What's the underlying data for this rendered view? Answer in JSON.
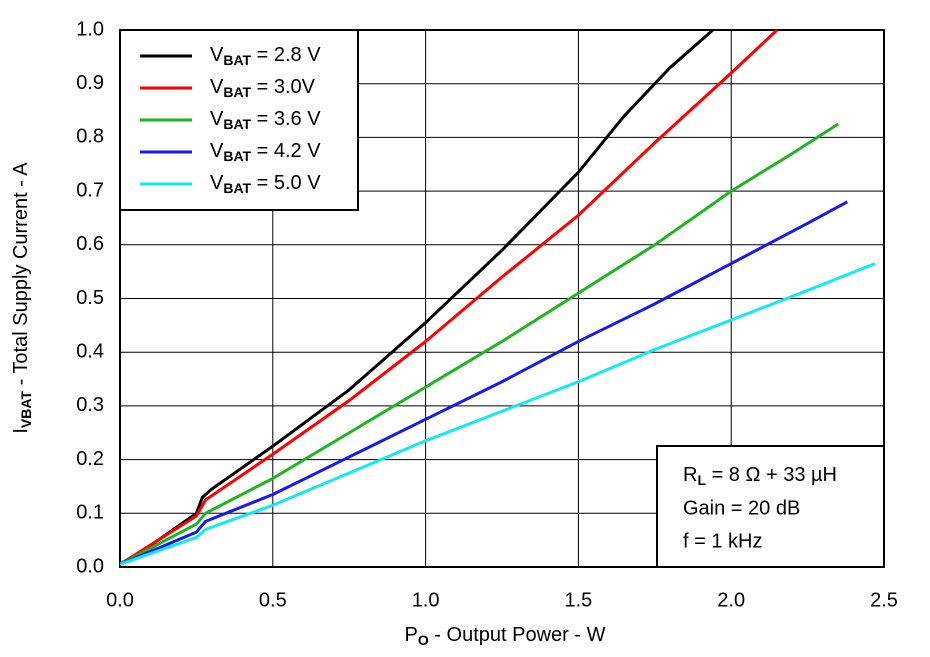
{
  "chart_data": {
    "type": "line",
    "xlabel": "PO - Output Power - W",
    "ylabel": "IVBAT - Total Supply Current - A",
    "xlim": [
      0,
      2.5
    ],
    "ylim": [
      0,
      1
    ],
    "xticks": [
      {
        "value": 0,
        "label": "0.0"
      },
      0.5,
      {
        "value": 1,
        "label": "1.0"
      },
      1.5,
      {
        "value": 2,
        "label": "2.0"
      },
      2.5
    ],
    "yticks": [
      {
        "value": 0,
        "label": "0.0"
      },
      0.1,
      0.2,
      0.3,
      0.4,
      0.5,
      0.6,
      0.7,
      0.8,
      0.9,
      {
        "value": 1,
        "label": "1.0"
      }
    ],
    "grid": true,
    "legend": "upper left",
    "annotations": [
      "RL = 8 Ω + 33 µH",
      "Gain = 20 dB",
      "f = 1 kHz"
    ],
    "series": [
      {
        "name": "VBAT = 2.8 V",
        "color": "#000000",
        "x": [
          0,
          0.1,
          0.25,
          0.27,
          0.3,
          0.5,
          0.75,
          1.0,
          1.25,
          1.5,
          1.65,
          1.8,
          1.94
        ],
        "values": [
          0.005,
          0.04,
          0.1,
          0.13,
          0.145,
          0.225,
          0.33,
          0.455,
          0.59,
          0.735,
          0.84,
          0.93,
          1.0
        ]
      },
      {
        "name": "VBAT = 3.0V",
        "color": "#ff0000",
        "x": [
          0,
          0.25,
          0.28,
          0.5,
          0.75,
          1.0,
          1.25,
          1.5,
          1.75,
          2.0,
          2.15
        ],
        "values": [
          0.005,
          0.095,
          0.125,
          0.21,
          0.31,
          0.42,
          0.54,
          0.655,
          0.79,
          0.92,
          1.0
        ]
      },
      {
        "name": "VBAT = 3.6 V",
        "color": "#22b222",
        "x": [
          0,
          0.25,
          0.28,
          0.5,
          0.75,
          1.0,
          1.25,
          1.5,
          1.75,
          2.0,
          2.2,
          2.35
        ],
        "values": [
          0.005,
          0.08,
          0.1,
          0.165,
          0.25,
          0.335,
          0.42,
          0.51,
          0.6,
          0.7,
          0.77,
          0.825
        ]
      },
      {
        "name": "VBAT = 4.2 V",
        "color": "#1a1ae6",
        "x": [
          0,
          0.25,
          0.28,
          0.5,
          0.75,
          1.0,
          1.25,
          1.5,
          1.75,
          2.0,
          2.25,
          2.38
        ],
        "values": [
          0.005,
          0.065,
          0.085,
          0.135,
          0.205,
          0.275,
          0.345,
          0.42,
          0.49,
          0.565,
          0.64,
          0.68
        ]
      },
      {
        "name": "VBAT = 5.0 V",
        "color": "#1ae6f0",
        "x": [
          0,
          0.25,
          0.28,
          0.5,
          0.75,
          1.0,
          1.25,
          1.5,
          1.75,
          2.0,
          2.25,
          2.47
        ],
        "values": [
          0.005,
          0.055,
          0.07,
          0.115,
          0.175,
          0.235,
          0.29,
          0.345,
          0.405,
          0.46,
          0.515,
          0.565
        ]
      }
    ]
  }
}
